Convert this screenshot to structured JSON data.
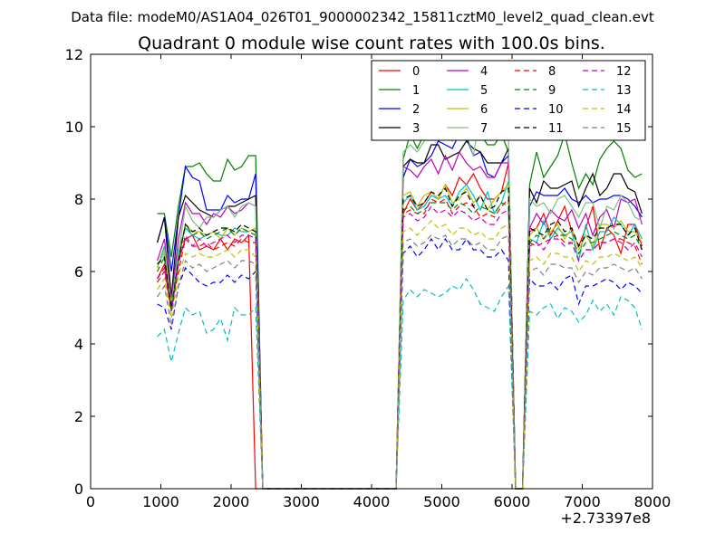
{
  "suptitle": "Data file: modeM0/AS1A04_026T01_9000002342_15811cztM0_level2_quad_clean.evt",
  "chart_data": {
    "type": "line",
    "title": "Quadrant 0 module wise count rates with 100.0s bins.",
    "xlabel": "",
    "ylabel": "",
    "x_offset_label": "+2.73397e8",
    "xlim": [
      0,
      8000
    ],
    "ylim": [
      0,
      12
    ],
    "xticks": [
      0,
      1000,
      2000,
      3000,
      4000,
      5000,
      6000,
      7000,
      8000
    ],
    "yticks": [
      0,
      2,
      4,
      6,
      8,
      10,
      12
    ],
    "legend_position": "top-right",
    "x": [
      950,
      1050,
      1150,
      1250,
      1350,
      1450,
      1550,
      1650,
      1750,
      1850,
      1950,
      2050,
      2150,
      2250,
      2350,
      2450,
      2550,
      2650,
      2750,
      2850,
      2950,
      3050,
      3150,
      3250,
      3350,
      3450,
      3550,
      3650,
      3750,
      3850,
      3950,
      4050,
      4150,
      4250,
      4350,
      4450,
      4550,
      4650,
      4750,
      4850,
      4950,
      5050,
      5150,
      5250,
      5350,
      5450,
      5550,
      5650,
      5750,
      5850,
      5950,
      6050,
      6150,
      6250,
      6350,
      6450,
      6550,
      6650,
      6750,
      6850,
      6950,
      7050,
      7150,
      7250,
      7350,
      7450,
      7550,
      7650,
      7750,
      7850
    ],
    "series": [
      {
        "name": "0",
        "color": "#ff0000",
        "dash": "solid",
        "values": [
          5.8,
          6.2,
          5.0,
          6.3,
          6.9,
          7.0,
          6.6,
          6.7,
          6.6,
          6.9,
          6.6,
          6.9,
          6.8,
          7.0,
          0,
          0,
          0,
          0,
          0,
          0,
          0,
          0,
          0,
          0,
          0,
          0,
          0,
          0,
          0,
          0,
          0,
          0,
          0,
          0,
          0,
          7.6,
          8.0,
          7.7,
          7.9,
          8.2,
          8.0,
          8.4,
          8.1,
          8.6,
          8.4,
          8.7,
          8.3,
          8.0,
          8.0,
          8.2,
          9.0,
          0,
          0,
          7.1,
          7.2,
          7.6,
          7.0,
          7.4,
          7.8,
          7.1,
          6.7,
          7.2,
          7.8,
          6.6,
          7.2,
          7.0,
          6.5,
          7.3,
          7.3,
          6.7
        ]
      },
      {
        "name": "1",
        "color": "#008000",
        "dash": "solid",
        "values": [
          7.6,
          7.6,
          6.4,
          7.8,
          8.9,
          8.9,
          9.0,
          8.7,
          8.5,
          8.5,
          9.1,
          8.8,
          8.9,
          9.2,
          9.2,
          0,
          0,
          0,
          0,
          0,
          0,
          0,
          0,
          0,
          0,
          0,
          0,
          0,
          0,
          0,
          0,
          0,
          0,
          0,
          0,
          9.1,
          9.8,
          9.4,
          9.8,
          9.8,
          9.8,
          10.0,
          9.9,
          9.7,
          9.8,
          9.8,
          9.8,
          9.5,
          9.5,
          9.8,
          9.3,
          0,
          0,
          8.4,
          9.3,
          8.6,
          8.9,
          9.2,
          9.8,
          9.0,
          8.3,
          8.7,
          8.4,
          9.1,
          9.4,
          9.6,
          9.4,
          8.8,
          8.6,
          8.7
        ]
      },
      {
        "name": "2",
        "color": "#0000ff",
        "dash": "solid",
        "values": [
          6.8,
          7.5,
          6.0,
          7.5,
          8.9,
          8.6,
          8.5,
          7.7,
          7.7,
          7.7,
          8.1,
          7.9,
          8.0,
          8.0,
          8.7,
          0,
          0,
          0,
          0,
          0,
          0,
          0,
          0,
          0,
          0,
          0,
          0,
          0,
          0,
          0,
          0,
          0,
          0,
          0,
          0,
          8.6,
          9.1,
          8.9,
          9.0,
          9.2,
          9.6,
          9.5,
          9.4,
          9.8,
          9.7,
          9.2,
          9.3,
          8.7,
          8.6,
          9.0,
          9.2,
          0,
          0,
          7.8,
          8.2,
          8.1,
          8.1,
          8.1,
          8.3,
          8.0,
          7.9,
          8.1,
          7.9,
          8.0,
          8.0,
          8.1,
          8.1,
          8.0,
          7.8,
          7.5
        ]
      },
      {
        "name": "3",
        "color": "#000000",
        "dash": "solid",
        "values": [
          6.8,
          7.5,
          5.3,
          7.5,
          8.1,
          7.9,
          7.7,
          7.6,
          7.5,
          7.7,
          7.8,
          7.8,
          7.9,
          8.0,
          8.1,
          0,
          0,
          0,
          0,
          0,
          0,
          0,
          0,
          0,
          0,
          0,
          0,
          0,
          0,
          0,
          0,
          0,
          0,
          0,
          0,
          8.9,
          9.1,
          9.0,
          9.0,
          9.5,
          9.5,
          9.1,
          9.2,
          9.3,
          9.6,
          9.4,
          9.3,
          9.0,
          9.0,
          9.0,
          9.4,
          0,
          0,
          8.3,
          7.9,
          8.5,
          8.3,
          8.3,
          8.4,
          8.5,
          7.8,
          8.3,
          8.7,
          8.1,
          8.3,
          8.7,
          8.7,
          8.3,
          8.2,
          7.6
        ]
      },
      {
        "name": "4",
        "color": "#bf00bf",
        "dash": "solid",
        "values": [
          6.3,
          6.9,
          5.2,
          6.9,
          7.9,
          7.6,
          7.6,
          7.3,
          7.6,
          7.5,
          7.8,
          7.6,
          7.7,
          7.9,
          7.8,
          0,
          0,
          0,
          0,
          0,
          0,
          0,
          0,
          0,
          0,
          0,
          0,
          0,
          0,
          0,
          0,
          0,
          0,
          0,
          0,
          8.9,
          8.8,
          8.6,
          8.9,
          9.1,
          8.7,
          9.2,
          8.8,
          9.3,
          9.0,
          8.8,
          8.9,
          8.6,
          8.6,
          9.0,
          9.0,
          0,
          0,
          7.2,
          7.6,
          7.3,
          7.7,
          7.5,
          7.4,
          7.7,
          7.2,
          7.6,
          7.0,
          7.5,
          7.7,
          7.2,
          8.0,
          7.9,
          8.0,
          7.3
        ]
      },
      {
        "name": "5",
        "color": "#00bfbf",
        "dash": "solid",
        "values": [
          6.1,
          6.7,
          5.1,
          6.6,
          7.2,
          7.0,
          6.9,
          7.0,
          7.1,
          7.0,
          7.0,
          7.2,
          7.1,
          7.1,
          7.2,
          0,
          0,
          0,
          0,
          0,
          0,
          0,
          0,
          0,
          0,
          0,
          0,
          0,
          0,
          0,
          0,
          0,
          0,
          0,
          0,
          7.9,
          8.1,
          7.7,
          7.8,
          8.1,
          8.0,
          8.1,
          7.8,
          8.2,
          8.4,
          8.1,
          7.7,
          8.2,
          7.6,
          7.9,
          8.5,
          0,
          0,
          6.9,
          6.8,
          7.4,
          6.9,
          7.2,
          7.0,
          7.1,
          6.3,
          7.3,
          6.6,
          7.1,
          7.1,
          7.5,
          7.3,
          7.0,
          7.3,
          6.9
        ]
      },
      {
        "name": "6",
        "color": "#bfbf00",
        "dash": "solid",
        "values": [
          6.1,
          6.6,
          5.1,
          6.4,
          7.3,
          7.1,
          7.1,
          7.0,
          7.1,
          6.9,
          7.2,
          7.0,
          7.2,
          7.1,
          7.2,
          0,
          0,
          0,
          0,
          0,
          0,
          0,
          0,
          0,
          0,
          0,
          0,
          0,
          0,
          0,
          0,
          0,
          0,
          0,
          0,
          8.1,
          8.2,
          7.8,
          8.1,
          8.2,
          8.0,
          8.4,
          7.9,
          8.0,
          8.3,
          7.9,
          8.1,
          7.7,
          8.0,
          8.2,
          8.4,
          0,
          0,
          7.0,
          7.2,
          6.9,
          7.1,
          7.3,
          6.9,
          7.2,
          6.6,
          7.0,
          6.7,
          7.3,
          7.3,
          7.2,
          7.4,
          7.1,
          7.1,
          6.8
        ]
      },
      {
        "name": "7",
        "color": "#7fbf7f",
        "dash": "solid",
        "values": [
          6.2,
          6.5,
          5.0,
          6.5,
          7.8,
          7.4,
          7.2,
          7.5,
          7.5,
          7.7,
          7.8,
          7.5,
          7.8,
          7.9,
          7.8,
          0,
          0,
          0,
          0,
          0,
          0,
          0,
          0,
          0,
          0,
          0,
          0,
          0,
          0,
          0,
          0,
          0,
          0,
          0,
          0,
          9.3,
          9.5,
          9.3,
          9.6,
          10.3,
          10.4,
          9.9,
          9.6,
          10.4,
          9.8,
          9.2,
          10.4,
          9.7,
          9.8,
          10.2,
          9.6,
          0,
          0,
          8.0,
          7.8,
          7.9,
          7.6,
          8.0,
          8.1,
          7.8,
          7.5,
          7.9,
          7.9,
          7.2,
          7.8,
          7.7,
          8.1,
          7.9,
          7.5,
          7.4
        ]
      },
      {
        "name": "8",
        "color": "#ff0000",
        "dash": "dashed",
        "values": [
          5.7,
          6.0,
          4.9,
          6.0,
          6.9,
          6.7,
          6.7,
          6.8,
          6.6,
          6.7,
          6.8,
          6.7,
          6.9,
          6.8,
          6.8,
          0,
          0,
          0,
          0,
          0,
          0,
          0,
          0,
          0,
          0,
          0,
          0,
          0,
          0,
          0,
          0,
          0,
          0,
          0,
          0,
          7.6,
          7.7,
          7.6,
          7.6,
          8.0,
          7.9,
          8.0,
          7.6,
          7.8,
          7.9,
          7.8,
          7.5,
          7.6,
          7.5,
          7.8,
          8.0,
          0,
          0,
          6.8,
          6.7,
          6.8,
          6.9,
          7.0,
          6.8,
          6.8,
          6.3,
          6.6,
          6.6,
          6.8,
          6.8,
          6.9,
          6.9,
          6.8,
          6.7,
          6.2
        ]
      },
      {
        "name": "9",
        "color": "#008000",
        "dash": "dashed",
        "values": [
          6.0,
          6.4,
          4.9,
          6.3,
          7.3,
          7.0,
          7.1,
          6.9,
          7.0,
          7.1,
          7.2,
          7.0,
          7.2,
          7.1,
          7.0,
          0,
          0,
          0,
          0,
          0,
          0,
          0,
          0,
          0,
          0,
          0,
          0,
          0,
          0,
          0,
          0,
          0,
          0,
          0,
          0,
          7.7,
          7.8,
          7.6,
          7.7,
          7.9,
          7.9,
          7.9,
          7.7,
          7.9,
          7.8,
          7.6,
          7.8,
          7.7,
          7.6,
          7.9,
          7.8,
          0,
          0,
          6.8,
          7.0,
          6.9,
          7.2,
          7.0,
          7.0,
          6.9,
          6.5,
          6.8,
          6.8,
          6.9,
          7.0,
          7.1,
          7.0,
          6.9,
          7.0,
          6.6
        ]
      },
      {
        "name": "10",
        "color": "#0000ff",
        "dash": "dashed",
        "values": [
          5.1,
          5.0,
          4.4,
          5.6,
          6.1,
          5.9,
          5.7,
          5.6,
          5.7,
          5.7,
          5.9,
          5.7,
          5.9,
          5.8,
          6.0,
          0,
          0,
          0,
          0,
          0,
          0,
          0,
          0,
          0,
          0,
          0,
          0,
          0,
          0,
          0,
          0,
          0,
          0,
          0,
          0,
          6.5,
          6.7,
          6.4,
          6.6,
          6.9,
          6.6,
          6.9,
          6.6,
          6.6,
          6.9,
          6.6,
          6.6,
          6.4,
          6.4,
          6.6,
          6.3,
          0,
          0,
          5.8,
          5.6,
          5.6,
          5.7,
          5.5,
          5.8,
          5.9,
          5.1,
          5.6,
          5.6,
          5.7,
          5.8,
          5.7,
          5.5,
          5.7,
          5.6,
          5.4
        ]
      },
      {
        "name": "11",
        "color": "#000000",
        "dash": "dashed",
        "values": [
          6.2,
          6.4,
          5.0,
          6.3,
          7.3,
          7.1,
          7.2,
          7.0,
          7.1,
          7.2,
          7.2,
          7.1,
          7.3,
          7.2,
          7.1,
          0,
          0,
          0,
          0,
          0,
          0,
          0,
          0,
          0,
          0,
          0,
          0,
          0,
          0,
          0,
          0,
          0,
          0,
          0,
          0,
          8.0,
          8.1,
          7.8,
          7.9,
          8.2,
          8.1,
          8.3,
          7.8,
          8.1,
          8.2,
          7.8,
          8.1,
          7.7,
          7.8,
          8.2,
          8.3,
          0,
          0,
          7.2,
          7.1,
          7.0,
          7.3,
          7.4,
          7.1,
          7.2,
          6.7,
          7.0,
          6.9,
          7.2,
          7.2,
          7.3,
          7.3,
          7.0,
          7.2,
          6.6
        ]
      },
      {
        "name": "12",
        "color": "#bf00bf",
        "dash": "dashed",
        "values": [
          5.8,
          6.1,
          4.9,
          6.2,
          7.0,
          6.7,
          6.9,
          6.7,
          6.8,
          6.9,
          7.0,
          6.8,
          7.0,
          7.0,
          6.9,
          0,
          0,
          0,
          0,
          0,
          0,
          0,
          0,
          0,
          0,
          0,
          0,
          0,
          0,
          0,
          0,
          0,
          0,
          0,
          0,
          7.5,
          7.6,
          7.4,
          7.5,
          7.8,
          7.6,
          7.7,
          7.5,
          7.7,
          7.6,
          7.4,
          7.5,
          7.3,
          7.3,
          7.6,
          7.7,
          0,
          0,
          6.7,
          6.8,
          6.6,
          6.9,
          6.9,
          6.7,
          6.8,
          6.3,
          6.6,
          6.6,
          6.8,
          6.8,
          6.9,
          6.8,
          6.6,
          6.8,
          6.4
        ]
      },
      {
        "name": "13",
        "color": "#00bfbf",
        "dash": "dashed",
        "values": [
          4.2,
          4.4,
          3.5,
          4.3,
          5.0,
          4.8,
          4.9,
          4.3,
          4.4,
          4.7,
          4.1,
          5.0,
          4.8,
          4.8,
          5.0,
          0,
          0,
          0,
          0,
          0,
          0,
          0,
          0,
          0,
          0,
          0,
          0,
          0,
          0,
          0,
          0,
          0,
          0,
          0,
          0,
          5.2,
          5.5,
          5.3,
          5.5,
          5.4,
          5.3,
          5.4,
          5.6,
          5.5,
          5.8,
          5.5,
          5.1,
          5.0,
          4.9,
          5.3,
          5.6,
          0,
          0,
          4.9,
          4.8,
          5.0,
          5.1,
          4.7,
          5.0,
          4.9,
          4.6,
          4.8,
          5.2,
          4.9,
          5.1,
          4.8,
          5.3,
          5.2,
          5.0,
          4.4
        ]
      },
      {
        "name": "14",
        "color": "#bfbf00",
        "dash": "dashed",
        "values": [
          5.5,
          5.8,
          4.7,
          5.9,
          6.5,
          6.4,
          6.5,
          6.4,
          6.4,
          6.5,
          6.6,
          6.4,
          6.6,
          6.6,
          6.4,
          0,
          0,
          0,
          0,
          0,
          0,
          0,
          0,
          0,
          0,
          0,
          0,
          0,
          0,
          0,
          0,
          0,
          0,
          0,
          0,
          7.1,
          7.2,
          7.0,
          7.2,
          7.4,
          7.2,
          7.3,
          7.0,
          7.2,
          7.2,
          7.0,
          7.1,
          6.9,
          6.9,
          7.2,
          7.3,
          0,
          0,
          6.3,
          6.4,
          6.2,
          6.5,
          6.5,
          6.4,
          6.4,
          6.0,
          6.3,
          6.2,
          6.4,
          6.4,
          6.5,
          6.4,
          6.3,
          6.4,
          6.1
        ]
      },
      {
        "name": "15",
        "color": "#7f7f7f",
        "dash": "dashed",
        "values": [
          5.3,
          5.6,
          4.5,
          5.6,
          6.3,
          6.1,
          6.2,
          6.0,
          6.1,
          6.2,
          6.3,
          6.1,
          6.3,
          6.3,
          6.2,
          0,
          0,
          0,
          0,
          0,
          0,
          0,
          0,
          0,
          0,
          0,
          0,
          0,
          0,
          0,
          0,
          0,
          0,
          0,
          0,
          6.8,
          6.9,
          6.7,
          6.8,
          7.0,
          6.9,
          7.0,
          6.7,
          6.9,
          6.9,
          6.7,
          6.8,
          6.6,
          6.6,
          6.9,
          7.0,
          0,
          0,
          6.0,
          6.1,
          5.9,
          6.2,
          6.2,
          6.1,
          6.1,
          5.7,
          6.0,
          5.9,
          6.1,
          6.1,
          6.2,
          6.1,
          6.0,
          6.1,
          5.8
        ]
      }
    ]
  }
}
